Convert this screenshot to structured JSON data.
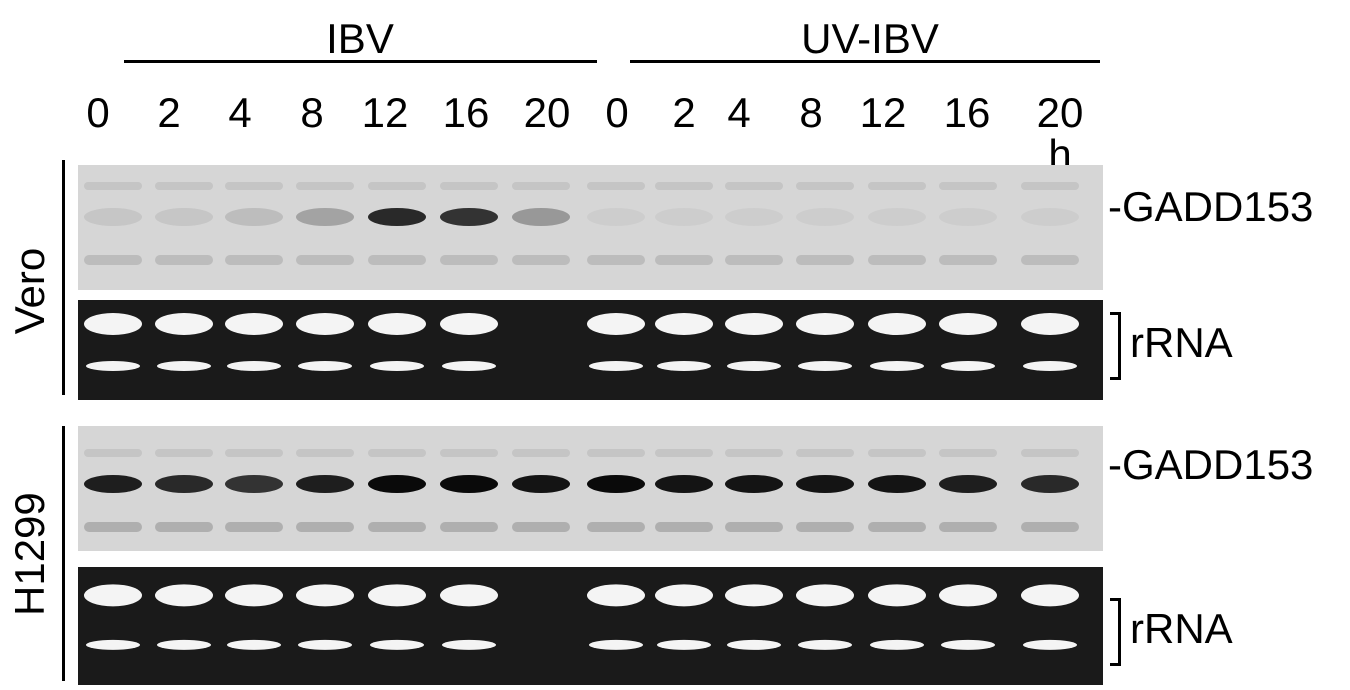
{
  "groups": [
    {
      "label": "IBV"
    },
    {
      "label": "UV-IBV"
    }
  ],
  "timepoints": [
    "0",
    "2",
    "4",
    "8",
    "12",
    "16",
    "20",
    "0",
    "2",
    "4",
    "8",
    "12",
    "16",
    "20 h"
  ],
  "cell_lines": [
    {
      "label": "Vero",
      "gadd_label": "-GADD153",
      "rrna_label": "rRNA",
      "gadd_intensity": [
        0.08,
        0.08,
        0.12,
        0.25,
        0.85,
        0.8,
        0.3,
        0.04,
        0.04,
        0.04,
        0.04,
        0.04,
        0.04,
        0.04
      ]
    },
    {
      "label": "H1299",
      "gadd_label": "-GADD153",
      "rrna_label": "rRNA",
      "gadd_intensity": [
        0.9,
        0.85,
        0.8,
        0.9,
        1.0,
        1.0,
        0.95,
        1.0,
        0.95,
        0.95,
        0.95,
        0.95,
        0.9,
        0.85
      ]
    }
  ],
  "colors": {
    "blot_bg": "#d6d6d6",
    "gel_bg": "#1a1a1a",
    "band_dark": "#0a0a0a",
    "band_bright": "#f4f4f4"
  }
}
